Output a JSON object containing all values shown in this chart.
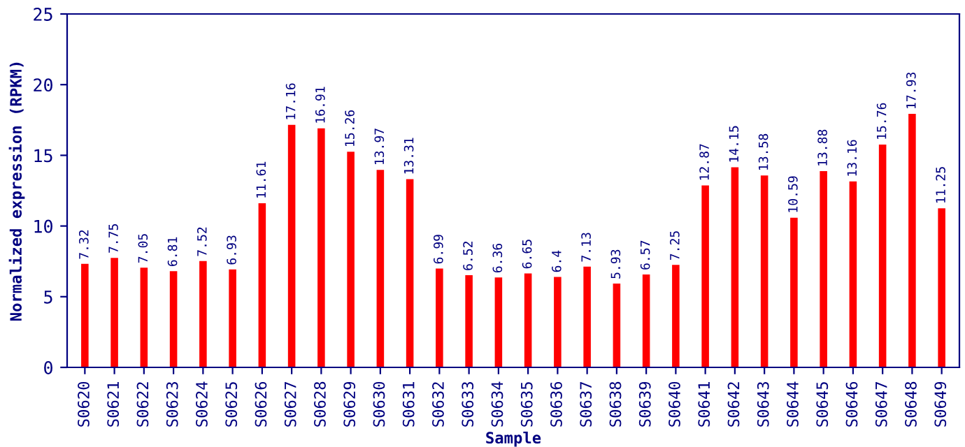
{
  "chart_data": {
    "type": "bar",
    "xlabel": "Sample",
    "ylabel": "Normalized expression (RPKM)",
    "categories": [
      "S0620",
      "S0621",
      "S0622",
      "S0623",
      "S0624",
      "S0625",
      "S0626",
      "S0627",
      "S0628",
      "S0629",
      "S0630",
      "S0631",
      "S0632",
      "S0633",
      "S0634",
      "S0635",
      "S0636",
      "S0637",
      "S0638",
      "S0639",
      "S0640",
      "S0641",
      "S0642",
      "S0643",
      "S0644",
      "S0645",
      "S0646",
      "S0647",
      "S0648",
      "S0649"
    ],
    "values": [
      7.32,
      7.75,
      7.05,
      6.81,
      7.52,
      6.93,
      11.61,
      17.16,
      16.91,
      15.26,
      13.97,
      13.31,
      6.99,
      6.52,
      6.36,
      6.65,
      6.4,
      7.13,
      5.93,
      6.57,
      7.25,
      12.87,
      14.15,
      13.58,
      10.59,
      13.88,
      13.16,
      15.76,
      17.93,
      11.25
    ],
    "color": "#ff0000",
    "ylim": [
      0,
      25
    ],
    "yticks": [
      0,
      5,
      10,
      15,
      20,
      25
    ],
    "data_labels": true,
    "grid": false,
    "legend": false
  }
}
